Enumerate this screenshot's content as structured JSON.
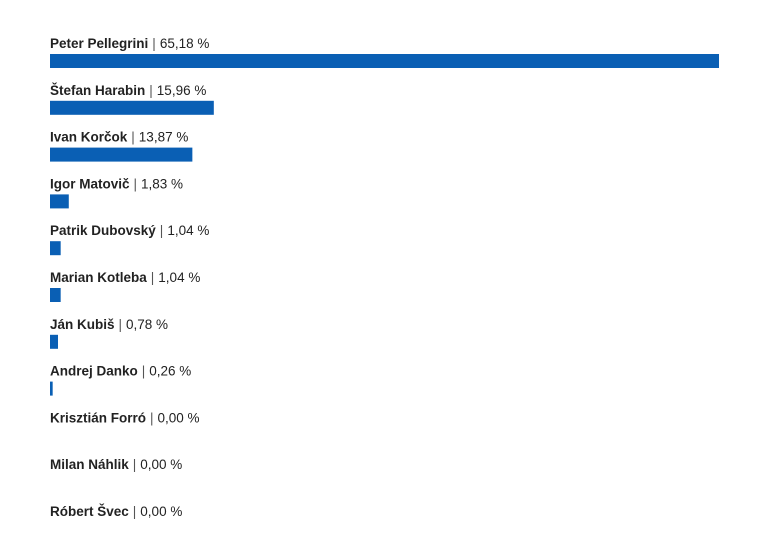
{
  "chart_data": {
    "type": "bar",
    "orientation": "horizontal",
    "color": "#0a5fb4",
    "separator": "|",
    "categories": [
      "Peter Pellegrini",
      "Štefan Harabin",
      "Ivan Korčok",
      "Igor Matovič",
      "Patrik Dubovský",
      "Marian Kotleba",
      "Ján Kubiš",
      "Andrej Danko",
      "Krisztián Forró",
      "Milan Náhlik",
      "Róbert Švec"
    ],
    "values": [
      65.18,
      15.96,
      13.87,
      1.83,
      1.04,
      1.04,
      0.78,
      0.26,
      0,
      0,
      0
    ],
    "value_labels": [
      "65,18 %",
      "15,96 %",
      "13,87 %",
      "1,83 %",
      "1,04 %",
      "1,04 %",
      "0,78 %",
      "0,26 %",
      "0,00 %",
      "0,00 %",
      "0,00 %"
    ]
  }
}
